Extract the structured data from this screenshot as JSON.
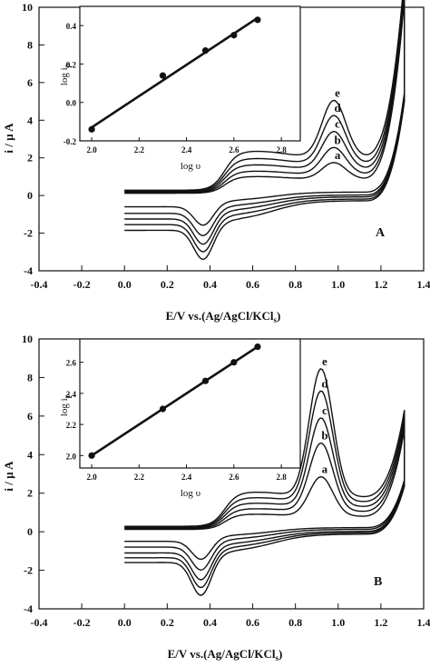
{
  "chart_data": [
    {
      "type": "line",
      "panel_label": "A",
      "xlabel": "E/V vs.(Ag/AgCl/KCl",
      "xlabel_sub": "s",
      "xlabel_close": ")",
      "ylabel": "i / µ A",
      "xlim": [
        -0.4,
        1.4
      ],
      "ylim": [
        -4,
        10
      ],
      "xticks": [
        -0.4,
        -0.2,
        0.0,
        0.2,
        0.4,
        0.6,
        0.8,
        1.0,
        1.2,
        1.4
      ],
      "xtick_labels": [
        "-0.4",
        "-0.2",
        "0.0",
        "0.2",
        "0.4",
        "0.6",
        "0.8",
        "1.0",
        "1.2",
        "1.4"
      ],
      "yticks": [
        -4,
        -2,
        0,
        2,
        4,
        6,
        8,
        10
      ],
      "ytick_labels": [
        "-4",
        "-2",
        "0",
        "2",
        "4",
        "6",
        "8",
        "10"
      ],
      "curve_labels": [
        "a",
        "b",
        "c",
        "d",
        "e"
      ],
      "series_params": [
        {
          "label": "a",
          "base": 0.12,
          "cathodic_base": -0.6,
          "anodic_peak": 1.75,
          "cathodic_peak": 0.95,
          "shoulder": 0.9
        },
        {
          "label": "b",
          "base": 0.16,
          "cathodic_base": -0.95,
          "anodic_peak": 2.55,
          "cathodic_peak": 1.15,
          "shoulder": 1.15
        },
        {
          "label": "c",
          "base": 0.2,
          "cathodic_base": -1.25,
          "anodic_peak": 3.4,
          "cathodic_peak": 1.3,
          "shoulder": 1.45
        },
        {
          "label": "d",
          "base": 0.24,
          "cathodic_base": -1.55,
          "anodic_peak": 4.25,
          "cathodic_peak": 1.4,
          "shoulder": 1.75
        },
        {
          "label": "e",
          "base": 0.28,
          "cathodic_base": -1.85,
          "anodic_peak": 5.05,
          "cathodic_peak": 1.5,
          "shoulder": 2.1
        }
      ],
      "anodic_peak_potential": 0.98,
      "cathodic_peak_potential": 0.37,
      "vertex_current": 9.6,
      "inset": {
        "type": "scatter",
        "xlabel": "log υ",
        "ylabel": "log i",
        "ylabel_sub": "p",
        "xlim": [
          1.95,
          2.88
        ],
        "ylim": [
          -0.2,
          0.5
        ],
        "xticks": [
          2.0,
          2.2,
          2.4,
          2.6,
          2.8
        ],
        "xtick_labels": [
          "2.0",
          "2.2",
          "2.4",
          "2.6",
          "2.8"
        ],
        "yticks": [
          -0.2,
          0.0,
          0.2,
          0.4
        ],
        "ytick_labels": [
          "-0.2",
          "0.0",
          "0.2",
          "0.4"
        ],
        "x": [
          2.0,
          2.3,
          2.48,
          2.6,
          2.7
        ],
        "y": [
          -0.14,
          0.14,
          0.27,
          0.35,
          0.43
        ],
        "fit": {
          "x": [
            2.0,
            2.7
          ],
          "y": [
            -0.13,
            0.44
          ]
        }
      }
    },
    {
      "type": "line",
      "panel_label": "B",
      "xlabel": "E/V vs.(Ag/AgCl/KCl",
      "xlabel_sub": "s",
      "xlabel_close": ")",
      "ylabel": "i / µ A",
      "xlim": [
        -0.4,
        1.4
      ],
      "ylim": [
        -4,
        10
      ],
      "xticks": [
        -0.4,
        -0.2,
        0.0,
        0.2,
        0.4,
        0.6,
        0.8,
        1.0,
        1.2,
        1.4
      ],
      "xtick_labels": [
        "-0.4",
        "-0.2",
        "0.0",
        "0.2",
        "0.4",
        "0.6",
        "0.8",
        "1.0",
        "1.2",
        "1.4"
      ],
      "yticks": [
        -4,
        -2,
        0,
        2,
        4,
        6,
        8,
        10
      ],
      "ytick_labels": [
        "-4",
        "-2",
        "0",
        "2",
        "4",
        "6",
        "8",
        "10"
      ],
      "curve_labels": [
        "a",
        "b",
        "c",
        "d",
        "e"
      ],
      "series_params": [
        {
          "label": "a",
          "base": 0.12,
          "cathodic_base": -0.5,
          "anodic_peak": 2.85,
          "cathodic_peak": 0.9,
          "shoulder": 0.8
        },
        {
          "label": "b",
          "base": 0.16,
          "cathodic_base": -0.8,
          "anodic_peak": 4.6,
          "cathodic_peak": 1.15,
          "shoulder": 1.05
        },
        {
          "label": "c",
          "base": 0.2,
          "cathodic_base": -1.1,
          "anodic_peak": 5.9,
          "cathodic_peak": 1.35,
          "shoulder": 1.3
        },
        {
          "label": "d",
          "base": 0.24,
          "cathodic_base": -1.35,
          "anodic_peak": 7.3,
          "cathodic_peak": 1.5,
          "shoulder": 1.55
        },
        {
          "label": "e",
          "base": 0.28,
          "cathodic_base": -1.6,
          "anodic_peak": 8.45,
          "cathodic_peak": 1.65,
          "shoulder": 1.8
        }
      ],
      "anodic_peak_potential": 0.92,
      "cathodic_peak_potential": 0.36,
      "vertex_current": 4.5,
      "inset": {
        "type": "scatter",
        "xlabel": "log υ",
        "ylabel": "log i",
        "ylabel_sub": "p",
        "xlim": [
          1.95,
          2.88
        ],
        "ylim": [
          1.92,
          2.75
        ],
        "xticks": [
          2.0,
          2.2,
          2.4,
          2.6,
          2.8
        ],
        "xtick_labels": [
          "2.0",
          "2.2",
          "2.4",
          "2.6",
          "2.8"
        ],
        "yticks": [
          2.0,
          2.2,
          2.4,
          2.6
        ],
        "ytick_labels": [
          "2.0",
          "2.2",
          "2.4",
          "2.6"
        ],
        "x": [
          2.0,
          2.3,
          2.48,
          2.6,
          2.7
        ],
        "y": [
          2.0,
          2.3,
          2.48,
          2.6,
          2.7
        ],
        "fit": {
          "x": [
            2.0,
            2.7
          ],
          "y": [
            2.0,
            2.7
          ]
        }
      }
    }
  ]
}
